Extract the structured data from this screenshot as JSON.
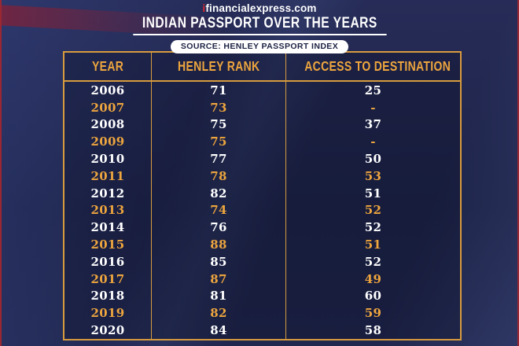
{
  "page": {
    "logo_prefix": "i",
    "logo_text": "financialexpress.com",
    "title": "INDIAN PASSPORT OVER THE YEARS",
    "source_badge": "SOURCE: HENLEY PASSPORT INDEX"
  },
  "table": {
    "columns": [
      "YEAR",
      "HENLEY RANK",
      "ACCESS TO DESTINATION"
    ],
    "rows": [
      {
        "year": "2006",
        "henley_rank": "71",
        "access_to_destination": "25",
        "highlight": false
      },
      {
        "year": "2007",
        "henley_rank": "73",
        "access_to_destination": "-",
        "highlight": true
      },
      {
        "year": "2008",
        "henley_rank": "75",
        "access_to_destination": "37",
        "highlight": false
      },
      {
        "year": "2009",
        "henley_rank": "75",
        "access_to_destination": "-",
        "highlight": true
      },
      {
        "year": "2010",
        "henley_rank": "77",
        "access_to_destination": "50",
        "highlight": false
      },
      {
        "year": "2011",
        "henley_rank": "78",
        "access_to_destination": "53",
        "highlight": true
      },
      {
        "year": "2012",
        "henley_rank": "82",
        "access_to_destination": "51",
        "highlight": false
      },
      {
        "year": "2013",
        "henley_rank": "74",
        "access_to_destination": "52",
        "highlight": true
      },
      {
        "year": "2014",
        "henley_rank": "76",
        "access_to_destination": "52",
        "highlight": false
      },
      {
        "year": "2015",
        "henley_rank": "88",
        "access_to_destination": "51",
        "highlight": true
      },
      {
        "year": "2016",
        "henley_rank": "85",
        "access_to_destination": "52",
        "highlight": false
      },
      {
        "year": "2017",
        "henley_rank": "87",
        "access_to_destination": "49",
        "highlight": true
      },
      {
        "year": "2018",
        "henley_rank": "81",
        "access_to_destination": "60",
        "highlight": false
      },
      {
        "year": "2019",
        "henley_rank": "82",
        "access_to_destination": "59",
        "highlight": true
      },
      {
        "year": "2020",
        "henley_rank": "84",
        "access_to_destination": "58",
        "highlight": false
      }
    ]
  },
  "colors": {
    "gold": "#EDA53E",
    "white_text": "#FFFFFF",
    "background_navy": "#262C57",
    "border_gold": "#D79B3E",
    "edge_red": "#9B2733",
    "badge_bg": "#FFFFFF",
    "badge_text": "#1C2243",
    "logo_red": "#D7282F"
  },
  "chart_data": {
    "type": "table",
    "title": "INDIAN PASSPORT OVER THE YEARS",
    "source": "HENLEY PASSPORT INDEX",
    "columns": [
      "YEAR",
      "HENLEY RANK",
      "ACCESS TO DESTINATION"
    ],
    "rows": [
      [
        2006,
        71,
        25
      ],
      [
        2007,
        73,
        null
      ],
      [
        2008,
        75,
        37
      ],
      [
        2009,
        75,
        null
      ],
      [
        2010,
        77,
        50
      ],
      [
        2011,
        78,
        53
      ],
      [
        2012,
        82,
        51
      ],
      [
        2013,
        74,
        52
      ],
      [
        2014,
        76,
        52
      ],
      [
        2015,
        88,
        51
      ],
      [
        2016,
        85,
        52
      ],
      [
        2017,
        87,
        49
      ],
      [
        2018,
        81,
        60
      ],
      [
        2019,
        82,
        59
      ],
      [
        2020,
        84,
        58
      ]
    ],
    "notes": "Gold-highlighted rows: odd years (2007, 2009, 2011, 2013, 2015, 2017, 2019). '-' shown for missing access values in 2007 and 2009."
  }
}
